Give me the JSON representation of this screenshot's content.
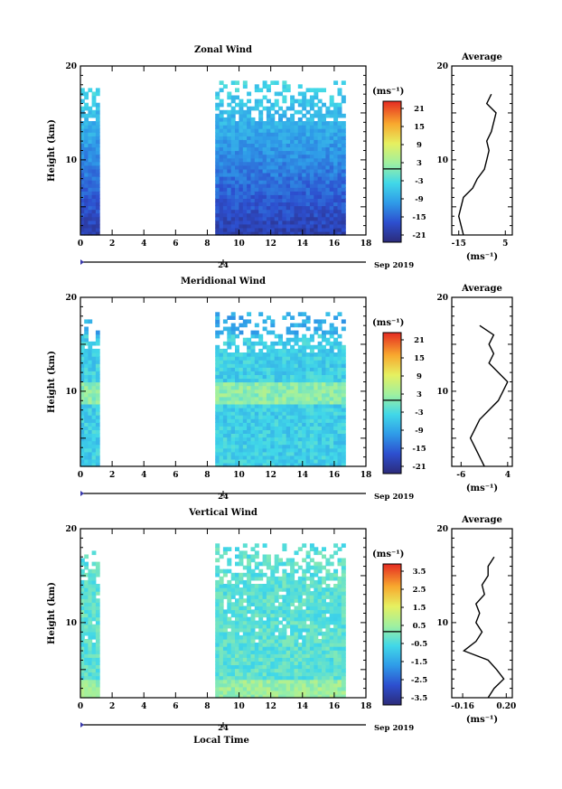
{
  "panels": [
    {
      "title": "Zonal Wind",
      "ylabel": "Height (km)",
      "xticks": [
        "0",
        "2",
        "4",
        "6",
        "8",
        "10",
        "12",
        "14",
        "16",
        "18"
      ],
      "yticks": [
        "10",
        "20"
      ],
      "date_label": "Sep 2019",
      "day_label": "24",
      "unit": "(ms⁻¹)",
      "colorbar_ticks": [
        "21",
        "15",
        "9",
        "3",
        "-3",
        "-9",
        "-15",
        "-21"
      ],
      "avg_title": "Average",
      "avg_xticks": [
        "-15",
        "5"
      ],
      "avg_yticks": [
        "10",
        "20"
      ],
      "avg_unit": "(ms⁻¹)"
    },
    {
      "title": "Meridional Wind",
      "ylabel": "Height (km)",
      "xticks": [
        "0",
        "2",
        "4",
        "6",
        "8",
        "10",
        "12",
        "14",
        "16",
        "18"
      ],
      "yticks": [
        "10",
        "20"
      ],
      "date_label": "Sep 2019",
      "day_label": "24",
      "unit": "(ms⁻¹)",
      "colorbar_ticks": [
        "21",
        "15",
        "9",
        "3",
        "-3",
        "-9",
        "-15",
        "-21"
      ],
      "avg_title": "Average",
      "avg_xticks": [
        "-6",
        "4"
      ],
      "avg_yticks": [
        "10",
        "20"
      ],
      "avg_unit": "(ms⁻¹)"
    },
    {
      "title": "Vertical Wind",
      "ylabel": "Height (km)",
      "xticks": [
        "0",
        "2",
        "4",
        "6",
        "8",
        "10",
        "12",
        "14",
        "16",
        "18"
      ],
      "yticks": [
        "10",
        "20"
      ],
      "date_label": "Sep 2019",
      "day_label": "24",
      "xlabel": "Local Time",
      "unit": "(ms⁻¹)",
      "colorbar_ticks": [
        "3.5",
        "2.5",
        "1.5",
        "0.5",
        "-0.5",
        "-1.5",
        "-2.5",
        "-3.5"
      ],
      "avg_title": "Average",
      "avg_xticks": [
        "-0.16",
        "0.20"
      ],
      "avg_yticks": [
        "10",
        "20"
      ],
      "avg_unit": "(ms⁻¹)"
    }
  ],
  "chart_data": [
    {
      "type": "heatmap",
      "title": "Zonal Wind",
      "ylabel": "Height (km)",
      "xlim": [
        0,
        18
      ],
      "ylim": [
        2,
        20
      ],
      "data_segments_hours": [
        [
          0,
          1.2
        ],
        [
          8.5,
          16.7
        ]
      ],
      "color_range": [
        -24,
        24
      ],
      "colorscale": "blue-cyan-green-yellow-red",
      "profile_heights_km": [
        2,
        3,
        4,
        5,
        6,
        7,
        8,
        9,
        10,
        11,
        12,
        13,
        14,
        15,
        16,
        17
      ],
      "profile_values": [
        -13,
        -14,
        -15,
        -14,
        -13,
        -9,
        -7,
        -4,
        -3,
        -2,
        -3,
        -1,
        0,
        1,
        -3,
        -1
      ]
    },
    {
      "type": "heatmap",
      "title": "Meridional Wind",
      "ylabel": "Height (km)",
      "xlim": [
        0,
        18
      ],
      "ylim": [
        2,
        20
      ],
      "data_segments_hours": [
        [
          0,
          1.2
        ],
        [
          8.5,
          16.7
        ]
      ],
      "color_range": [
        -24,
        24
      ],
      "colorscale": "blue-cyan-green-yellow-red",
      "profile_heights_km": [
        2,
        3,
        4,
        5,
        6,
        7,
        8,
        9,
        10,
        11,
        12,
        13,
        14,
        15,
        16,
        17
      ],
      "profile_values": [
        -1,
        -2,
        -3,
        -4,
        -3,
        -2,
        0,
        2,
        3,
        4,
        2,
        0,
        1,
        0,
        1,
        -2
      ]
    },
    {
      "type": "heatmap",
      "title": "Vertical Wind",
      "ylabel": "Height (km)",
      "xlabel": "Local Time",
      "xlim": [
        0,
        18
      ],
      "ylim": [
        2,
        20
      ],
      "data_segments_hours": [
        [
          0,
          1.2
        ],
        [
          8.5,
          16.7
        ]
      ],
      "color_range": [
        -4,
        4
      ],
      "colorscale": "blue-cyan-green-yellow-red",
      "profile_heights_km": [
        2,
        3,
        4,
        5,
        6,
        7,
        8,
        9,
        10,
        11,
        12,
        13,
        14,
        15,
        16,
        17
      ],
      "profile_values": [
        0.05,
        0.1,
        0.18,
        0.12,
        0.05,
        -0.15,
        -0.05,
        0.0,
        -0.05,
        -0.02,
        -0.05,
        0.02,
        0.0,
        0.05,
        0.05,
        0.1
      ]
    }
  ]
}
